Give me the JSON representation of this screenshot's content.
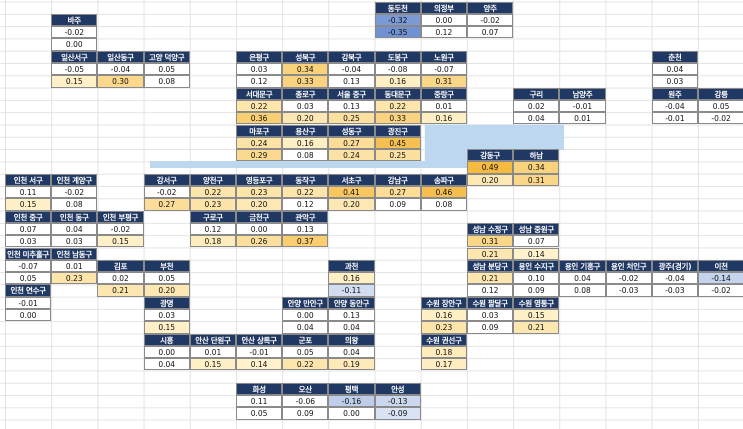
{
  "blocks": [
    {
      "label": "동두천",
      "values": [
        "-0.32",
        "-0.35"
      ]
    },
    {
      "label": "의정부",
      "values": [
        "0.00",
        "0.12"
      ]
    },
    {
      "label": "양주",
      "values": [
        "-0.02",
        "0.07"
      ]
    },
    {
      "label": "바주",
      "values": [
        "-0.02",
        "0.00"
      ]
    },
    {
      "label": "일산서구",
      "values": [
        "-0.05",
        "0.15"
      ]
    },
    {
      "label": "일산동구",
      "values": [
        "-0.04",
        "0.30"
      ]
    },
    {
      "label": "고양 덕양구",
      "values": [
        "0.05",
        "0.08"
      ]
    },
    {
      "label": "은평구",
      "values": [
        "0.03",
        "0.12"
      ]
    },
    {
      "label": "성북구",
      "values": [
        "0.34",
        "0.33"
      ]
    },
    {
      "label": "강북구",
      "values": [
        "-0.04",
        "0.13"
      ]
    },
    {
      "label": "도봉구",
      "values": [
        "-0.08",
        "0.16"
      ]
    },
    {
      "label": "노원구",
      "values": [
        "-0.07",
        "0.31"
      ]
    },
    {
      "label": "서대문구",
      "values": [
        "0.22",
        "0.36"
      ]
    },
    {
      "label": "종로구",
      "values": [
        "0.03",
        "0.20"
      ]
    },
    {
      "label": "서울 중구",
      "values": [
        "0.13",
        "0.25"
      ]
    },
    {
      "label": "동대문구",
      "values": [
        "0.22",
        "0.33"
      ]
    },
    {
      "label": "중랑구",
      "values": [
        "0.01",
        "0.16"
      ]
    },
    {
      "label": "구리",
      "values": [
        "0.02",
        "0.04"
      ]
    },
    {
      "label": "남양주",
      "values": [
        "-0.01",
        "0.01"
      ]
    },
    {
      "label": "춘천",
      "values": [
        "0.04",
        "0.03"
      ]
    },
    {
      "label": "원주",
      "values": [
        "-0.04",
        "-0.01"
      ]
    },
    {
      "label": "강릉",
      "values": [
        "0.05",
        "-0.02"
      ]
    },
    {
      "label": "마포구",
      "values": [
        "0.24",
        "0.29"
      ]
    },
    {
      "label": "용산구",
      "values": [
        "0.16",
        "0.08"
      ]
    },
    {
      "label": "성동구",
      "values": [
        "0.27",
        "0.24"
      ]
    },
    {
      "label": "광진구",
      "values": [
        "0.45",
        "0.25"
      ]
    },
    {
      "label": "강동구",
      "values": [
        "0.49",
        "0.20"
      ]
    },
    {
      "label": "하남",
      "values": [
        "0.34",
        "0.31"
      ]
    },
    {
      "label": "인천 서구",
      "values": [
        "0.11",
        "0.15"
      ]
    },
    {
      "label": "인천 계양구",
      "values": [
        "-0.02",
        "0.08"
      ]
    },
    {
      "label": "강서구",
      "values": [
        "-0.02",
        "0.27"
      ]
    },
    {
      "label": "양천구",
      "values": [
        "0.22",
        "0.23"
      ]
    },
    {
      "label": "영등포구",
      "values": [
        "0.23",
        "0.20"
      ]
    },
    {
      "label": "동작구",
      "values": [
        "0.22",
        "0.12"
      ]
    },
    {
      "label": "서초구",
      "values": [
        "0.41",
        "0.20"
      ]
    },
    {
      "label": "강남구",
      "values": [
        "0.27",
        "0.09"
      ]
    },
    {
      "label": "송파구",
      "values": [
        "0.46",
        "0.08"
      ]
    },
    {
      "label": "인천 중구",
      "values": [
        "0.07",
        "0.03"
      ]
    },
    {
      "label": "인천 동구",
      "values": [
        "0.04",
        "0.03"
      ]
    },
    {
      "label": "인천 부평구",
      "values": [
        "-0.02",
        "0.15"
      ]
    },
    {
      "label": "구로구",
      "values": [
        "0.12",
        "0.18"
      ]
    },
    {
      "label": "금천구",
      "values": [
        "0.00",
        "0.26"
      ]
    },
    {
      "label": "관악구",
      "values": [
        "0.13",
        "0.37"
      ]
    },
    {
      "label": "성남 수정구",
      "values": [
        "0.31",
        "0.21"
      ]
    },
    {
      "label": "성남 중원구",
      "values": [
        "0.07",
        "0.14"
      ]
    },
    {
      "label": "인천 미추홀구",
      "values": [
        "-0.07",
        "0.05"
      ]
    },
    {
      "label": "인천 남동구",
      "values": [
        "0.01",
        "0.23"
      ]
    },
    {
      "label": "김포",
      "values": [
        "0.02",
        "0.21"
      ]
    },
    {
      "label": "부천",
      "values": [
        "0.05",
        "0.20"
      ]
    },
    {
      "label": "과천",
      "values": [
        "0.16",
        "-0.11"
      ]
    },
    {
      "label": "성남 분당구",
      "values": [
        "0.21",
        "0.12"
      ]
    },
    {
      "label": "용인 수지구",
      "values": [
        "0.10",
        "0.09"
      ]
    },
    {
      "label": "용인 기흥구",
      "values": [
        "0.04",
        "0.08"
      ]
    },
    {
      "label": "용인 처인구",
      "values": [
        "-0.02",
        "-0.03"
      ]
    },
    {
      "label": "광주(경기)",
      "values": [
        "-0.04",
        "-0.03"
      ]
    },
    {
      "label": "이천",
      "values": [
        "-0.14",
        "-0.02"
      ]
    },
    {
      "label": "인천 연수구",
      "values": [
        "-0.01",
        "0.00"
      ]
    },
    {
      "label": "광명",
      "values": [
        "0.03",
        "0.15"
      ]
    },
    {
      "label": "안양 만안구",
      "values": [
        "0.00",
        "0.04"
      ]
    },
    {
      "label": "안양 동안구",
      "values": [
        "0.13",
        "0.04"
      ]
    },
    {
      "label": "수원 장안구",
      "values": [
        "0.16",
        "0.23"
      ]
    },
    {
      "label": "수원 팔달구",
      "values": [
        "0.03",
        "0.09"
      ]
    },
    {
      "label": "수원 영통구",
      "values": [
        "0.15",
        "0.21"
      ]
    },
    {
      "label": "시흥",
      "values": [
        "0.00",
        "0.04"
      ]
    },
    {
      "label": "안산 단원구",
      "values": [
        "0.01",
        "0.15"
      ]
    },
    {
      "label": "안산 상록구",
      "values": [
        "-0.01",
        "0.14"
      ]
    },
    {
      "label": "군포",
      "values": [
        "0.05",
        "0.22"
      ]
    },
    {
      "label": "의왕",
      "values": [
        "0.04",
        "0.19"
      ]
    },
    {
      "label": "수원 권선구",
      "values": [
        "0.18",
        "0.17"
      ]
    },
    {
      "label": "화성",
      "values": [
        "0.11",
        "0.05"
      ]
    },
    {
      "label": "오산",
      "values": [
        "-0.06",
        "0.09"
      ]
    },
    {
      "label": "평택",
      "values": [
        "-0.16",
        "0.00"
      ]
    },
    {
      "label": "안성",
      "values": [
        "-0.13",
        "-0.09"
      ]
    }
  ]
}
